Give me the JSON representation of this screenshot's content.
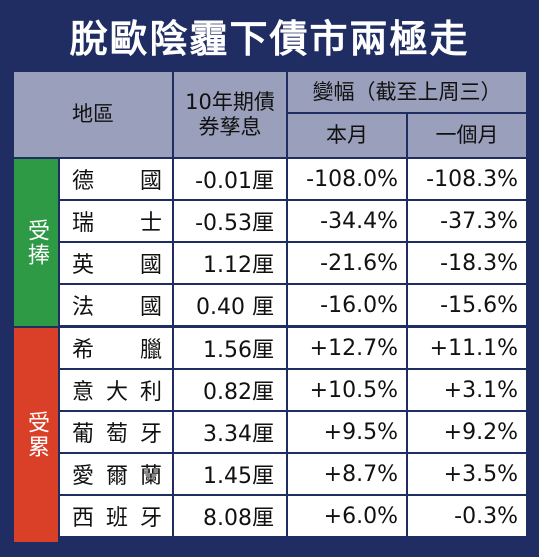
{
  "title": "脫歐陰霾下債市兩極走",
  "header": {
    "region": "地區",
    "yield_line1": "10年期債",
    "yield_line2": "券孳息",
    "change": "變幅（截至上周三）",
    "this_month": "本月",
    "one_month": "一個月"
  },
  "groups": {
    "hit": "受捧",
    "benefit": "受累"
  },
  "rows": [
    {
      "name": [
        "德",
        "國"
      ],
      "yield": "-0.01厘",
      "month": "-108.0%",
      "one": "-108.3%"
    },
    {
      "name": [
        "瑞",
        "士"
      ],
      "yield": "-0.53厘",
      "month": "-34.4%",
      "one": "-37.3%"
    },
    {
      "name": [
        "英",
        "國"
      ],
      "yield": "1.12厘",
      "month": "-21.6%",
      "one": "-18.3%"
    },
    {
      "name": [
        "法",
        "國"
      ],
      "yield": "0.40 厘",
      "month": "-16.0%",
      "one": "-15.6%"
    },
    {
      "name": [
        "希",
        "臘"
      ],
      "yield": "1.56厘",
      "month": "+12.7%",
      "one": "+11.1%"
    },
    {
      "name": [
        "意",
        "大",
        "利"
      ],
      "yield": "0.82厘",
      "month": "+10.5%",
      "one": "+3.1%"
    },
    {
      "name": [
        "葡",
        "萄",
        "牙"
      ],
      "yield": "3.34厘",
      "month": "+9.5%",
      "one": "+9.2%"
    },
    {
      "name": [
        "愛",
        "爾",
        "蘭"
      ],
      "yield": "1.45厘",
      "month": "+8.7%",
      "one": "+3.5%"
    },
    {
      "name": [
        "西",
        "班",
        "牙"
      ],
      "yield": "8.08厘",
      "month": "+6.0%",
      "one": "-0.3%"
    }
  ]
}
